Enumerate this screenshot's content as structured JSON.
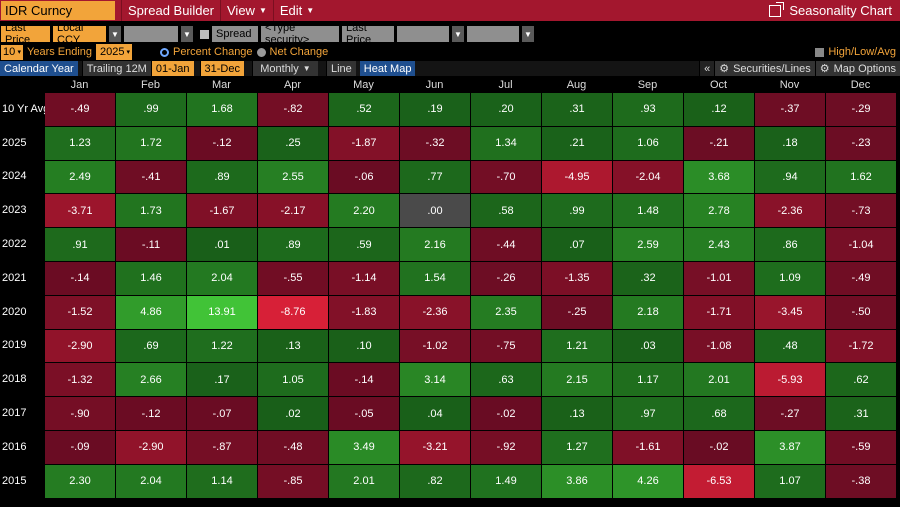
{
  "titlebar": {
    "ticker": "IDR Curncy",
    "menu": [
      {
        "label": "Spread Builder",
        "caret": false
      },
      {
        "label": "View",
        "caret": true
      },
      {
        "label": "Edit",
        "caret": true
      }
    ],
    "right_title": "Seasonality Chart"
  },
  "row2": {
    "field1": "Last Price",
    "field2": "Local CCY",
    "spread_label": "Spread",
    "security_placeholder": "<Type security>",
    "field3": "Last Price"
  },
  "row3": {
    "years": "10",
    "years_label": "Years Ending",
    "end_year": "2025",
    "percent_change": "Percent Change",
    "net_change": "Net Change",
    "high_low": "High/Low/Avg"
  },
  "row4": {
    "calendar_year": "Calendar Year",
    "trailing": "Trailing 12M",
    "start": "01-Jan",
    "end": "31-Dec",
    "period": "Monthly",
    "line": "Line",
    "heat_map": "Heat Map",
    "collapse": "«",
    "securities_lines": "Securities/Lines",
    "map_options": "Map Options"
  },
  "grid": {
    "months": [
      "Jan",
      "Feb",
      "Mar",
      "Apr",
      "May",
      "Jun",
      "Jul",
      "Aug",
      "Sep",
      "Oct",
      "Nov",
      "Dec"
    ],
    "rows": [
      {
        "label": "10 Yr Avg",
        "values": [
          "-.49",
          ".99",
          "1.68",
          "-.82",
          ".52",
          ".19",
          ".20",
          ".31",
          ".93",
          ".12",
          "-.37",
          "-.29"
        ]
      },
      {
        "label": "2025",
        "values": [
          "1.23",
          "1.72",
          "-.12",
          ".25",
          "-1.87",
          "-.32",
          "1.34",
          ".21",
          "1.06",
          "-.21",
          ".18",
          "-.23"
        ]
      },
      {
        "label": "2024",
        "values": [
          "2.49",
          "-.41",
          ".89",
          "2.55",
          "-.06",
          ".77",
          "-.70",
          "-4.95",
          "-2.04",
          "3.68",
          ".94",
          "1.62"
        ]
      },
      {
        "label": "2023",
        "values": [
          "-3.71",
          "1.73",
          "-1.67",
          "-2.17",
          "2.20",
          ".00",
          ".58",
          ".99",
          "1.48",
          "2.78",
          "-2.36",
          "-.73"
        ]
      },
      {
        "label": "2022",
        "values": [
          ".91",
          "-.11",
          ".01",
          ".89",
          ".59",
          "2.16",
          "-.44",
          ".07",
          "2.59",
          "2.43",
          ".86",
          "-1.04"
        ]
      },
      {
        "label": "2021",
        "values": [
          "-.14",
          "1.46",
          "2.04",
          "-.55",
          "-1.14",
          "1.54",
          "-.26",
          "-1.35",
          ".32",
          "-1.01",
          "1.09",
          "-.49"
        ]
      },
      {
        "label": "2020",
        "values": [
          "-1.52",
          "4.86",
          "13.91",
          "-8.76",
          "-1.83",
          "-2.36",
          "2.35",
          "-.25",
          "2.18",
          "-1.71",
          "-3.45",
          "-.50"
        ]
      },
      {
        "label": "2019",
        "values": [
          "-2.90",
          ".69",
          "1.22",
          ".13",
          ".10",
          "-1.02",
          "-.75",
          "1.21",
          ".03",
          "-1.08",
          ".48",
          "-1.72"
        ]
      },
      {
        "label": "2018",
        "values": [
          "-1.32",
          "2.66",
          ".17",
          "1.05",
          "-.14",
          "3.14",
          ".63",
          "2.15",
          "1.17",
          "2.01",
          "-5.93",
          ".62"
        ]
      },
      {
        "label": "2017",
        "values": [
          "-.90",
          "-.12",
          "-.07",
          ".02",
          "-.05",
          ".04",
          "-.02",
          ".13",
          ".97",
          ".68",
          "-.27",
          ".31"
        ]
      },
      {
        "label": "2016",
        "values": [
          "-.09",
          "-2.90",
          "-.87",
          "-.48",
          "3.49",
          "-3.21",
          "-.92",
          "1.27",
          "-1.61",
          "-.02",
          "3.87",
          "-.59"
        ]
      },
      {
        "label": "2015",
        "values": [
          "2.30",
          "2.04",
          "1.14",
          "-.85",
          "2.01",
          ".82",
          "1.49",
          "3.86",
          "4.26",
          "-6.53",
          "1.07",
          "-.38"
        ]
      }
    ]
  },
  "colors": {
    "title_bg": "#a3172e",
    "accent_orange": "#f2a43a",
    "zero_cell": "#4a4a4a"
  }
}
